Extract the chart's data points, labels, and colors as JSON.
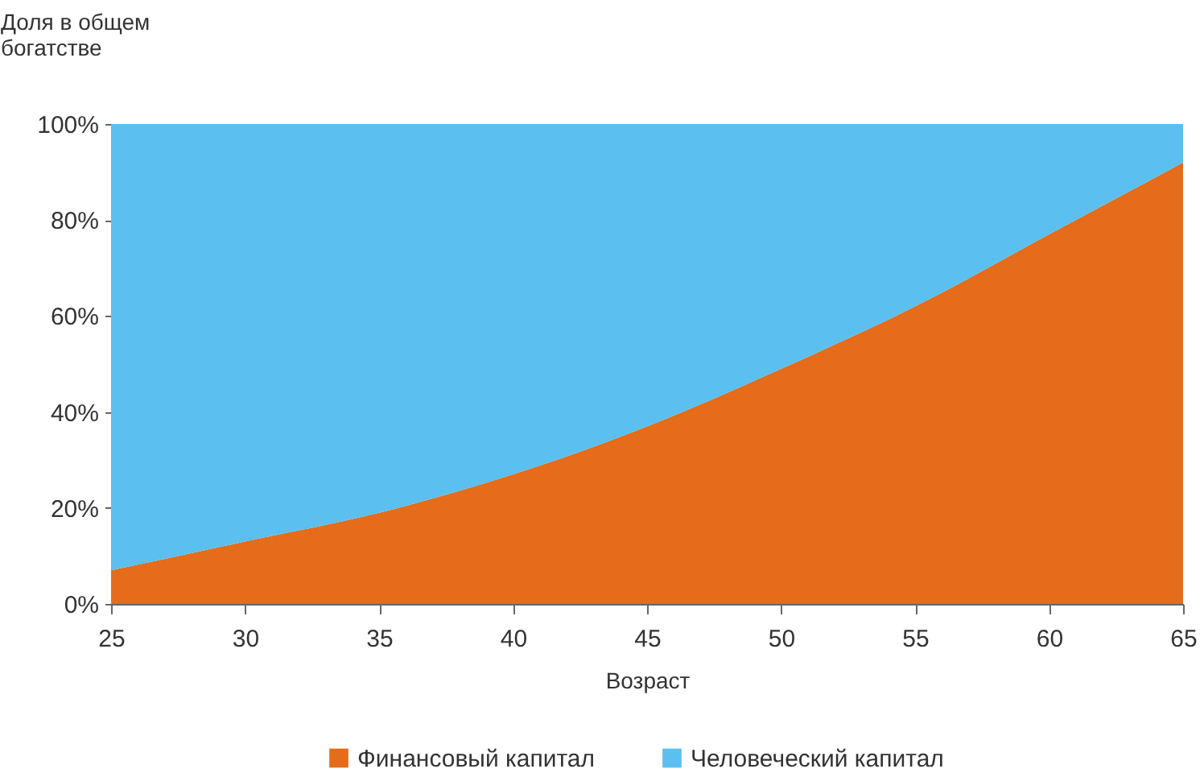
{
  "chart_data": {
    "type": "area",
    "stacked": true,
    "ylabel": "Доля в общем богатстве",
    "xlabel": "Возраст",
    "x": [
      25,
      30,
      35,
      40,
      45,
      50,
      55,
      60,
      65
    ],
    "series": [
      {
        "name": "Финансовый капитал",
        "color": "#e46c1a",
        "values": [
          7,
          13,
          19,
          27,
          37,
          49,
          62,
          77,
          92
        ]
      },
      {
        "name": "Человеческий капитал",
        "color": "#5bbfef",
        "values": [
          93,
          87,
          81,
          73,
          63,
          51,
          38,
          23,
          8
        ]
      }
    ],
    "xlim": [
      25,
      65
    ],
    "xticks": [
      25,
      30,
      35,
      40,
      45,
      50,
      55,
      60,
      65
    ],
    "ylim": [
      0,
      100
    ],
    "yticks": [
      {
        "value": 0,
        "label": "0%"
      },
      {
        "value": 20,
        "label": "20%"
      },
      {
        "value": 40,
        "label": "40%"
      },
      {
        "value": 60,
        "label": "60%"
      },
      {
        "value": 80,
        "label": "80%"
      },
      {
        "value": 100,
        "label": "100%"
      }
    ],
    "legend": "bottom",
    "grid": false
  }
}
